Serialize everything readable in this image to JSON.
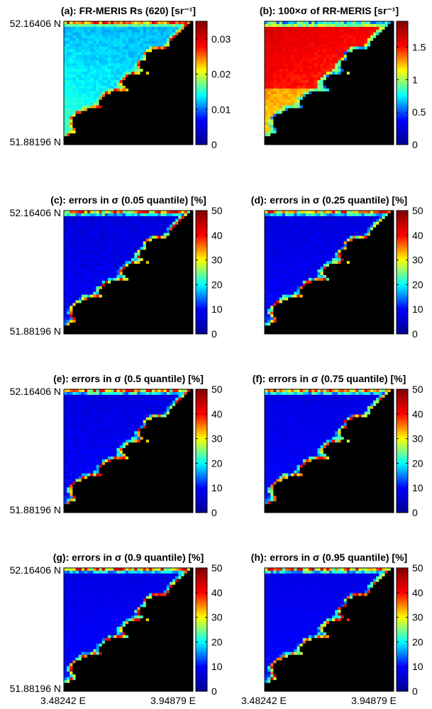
{
  "figure": {
    "x_tick_left": "3.48242 E",
    "x_tick_right": "3.94879 E",
    "y_tick_top": "52.16406 N",
    "y_tick_bottom": "51.88196 N"
  },
  "colormap": [
    "#00008f",
    "#0000ff",
    "#00ffff",
    "#ffff00",
    "#ff0000",
    "#800000"
  ],
  "land_color": "#000000",
  "chart_data": [
    {
      "type": "heatmap",
      "title": "(a): FR-MERIS Rs (620) [sr⁻¹]",
      "colorbar": {
        "min": 0,
        "max": 0.035,
        "ticks": [
          0,
          0.01,
          0.02,
          0.03
        ],
        "tick_labels": [
          "0",
          "0.01",
          "0.02",
          "0.03"
        ]
      },
      "xlim": [
        3.48242,
        3.94879
      ],
      "ylim": [
        51.88196,
        52.16406
      ]
    },
    {
      "type": "heatmap",
      "title": "(b): 100×σ of RR-MERIS [sr⁻¹]",
      "colorbar": {
        "min": 0,
        "max": 1.9,
        "ticks": [
          0,
          0.5,
          1,
          1.5
        ],
        "tick_labels": [
          "0",
          "0.5",
          "1",
          "1.5"
        ]
      },
      "xlim": [
        3.48242,
        3.94879
      ],
      "ylim": [
        51.88196,
        52.16406
      ]
    },
    {
      "type": "heatmap",
      "title": "(c): errors in σ (0.05 quantile) [%]",
      "colorbar": {
        "min": 0,
        "max": 50,
        "ticks": [
          0,
          10,
          20,
          30,
          40,
          50
        ],
        "tick_labels": [
          "0",
          "10",
          "20",
          "30",
          "40",
          "50"
        ]
      },
      "xlim": [
        3.48242,
        3.94879
      ],
      "ylim": [
        51.88196,
        52.16406
      ]
    },
    {
      "type": "heatmap",
      "title": "(d): errors in σ (0.25 quantile) [%]",
      "colorbar": {
        "min": 0,
        "max": 50,
        "ticks": [
          0,
          10,
          20,
          30,
          40,
          50
        ],
        "tick_labels": [
          "0",
          "10",
          "20",
          "30",
          "40",
          "50"
        ]
      },
      "xlim": [
        3.48242,
        3.94879
      ],
      "ylim": [
        51.88196,
        52.16406
      ]
    },
    {
      "type": "heatmap",
      "title": "(e): errors in σ (0.5 quantile) [%]",
      "colorbar": {
        "min": 0,
        "max": 50,
        "ticks": [
          0,
          10,
          20,
          30,
          40,
          50
        ],
        "tick_labels": [
          "0",
          "10",
          "20",
          "30",
          "40",
          "50"
        ]
      },
      "xlim": [
        3.48242,
        3.94879
      ],
      "ylim": [
        51.88196,
        52.16406
      ]
    },
    {
      "type": "heatmap",
      "title": "(f): errors in σ (0.75 quantile) [%]",
      "colorbar": {
        "min": 0,
        "max": 50,
        "ticks": [
          0,
          10,
          20,
          30,
          40,
          50
        ],
        "tick_labels": [
          "0",
          "10",
          "20",
          "30",
          "40",
          "50"
        ]
      },
      "xlim": [
        3.48242,
        3.94879
      ],
      "ylim": [
        51.88196,
        52.16406
      ]
    },
    {
      "type": "heatmap",
      "title": "(g): errors in σ (0.9 quantile) [%]",
      "colorbar": {
        "min": 0,
        "max": 50,
        "ticks": [
          0,
          10,
          20,
          30,
          40,
          50
        ],
        "tick_labels": [
          "0",
          "10",
          "20",
          "30",
          "40",
          "50"
        ]
      },
      "xlim": [
        3.48242,
        3.94879
      ],
      "ylim": [
        51.88196,
        52.16406
      ]
    },
    {
      "type": "heatmap",
      "title": "(h): errors in σ (0.95 quantile) [%]",
      "colorbar": {
        "min": 0,
        "max": 50,
        "ticks": [
          0,
          10,
          20,
          30,
          40,
          50
        ],
        "tick_labels": [
          "0",
          "10",
          "20",
          "30",
          "40",
          "50"
        ]
      },
      "xlim": [
        3.48242,
        3.94879
      ],
      "ylim": [
        51.88196,
        52.16406
      ]
    }
  ]
}
